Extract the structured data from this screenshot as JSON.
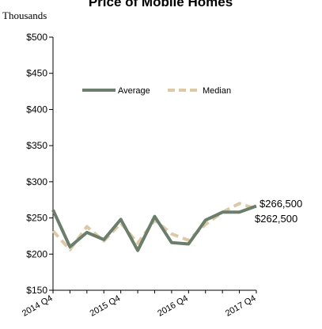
{
  "chart_data": {
    "type": "line",
    "title": "Price of Mobile Homes",
    "unit_label": "Thousands",
    "xlabel": "",
    "ylabel": "",
    "ylim": [
      150,
      500
    ],
    "yticks": [
      150,
      200,
      250,
      300,
      350,
      400,
      450,
      500
    ],
    "ytick_labels": [
      "$150",
      "$200",
      "$250",
      "$300",
      "$350",
      "$400",
      "$450",
      "$500"
    ],
    "x": [
      "2014 Q4",
      "2015 Q1",
      "2015 Q2",
      "2015 Q3",
      "2015 Q4",
      "2016 Q1",
      "2016 Q2",
      "2016 Q3",
      "2016 Q4",
      "2017 Q1",
      "2017 Q2",
      "2017 Q3",
      "2017 Q4"
    ],
    "xtick_labels": [
      "2014 Q4",
      "2015 Q4",
      "2016 Q4",
      "2017 Q4"
    ],
    "grid": false,
    "legend_position": "top-center",
    "series": [
      {
        "name": "Average",
        "color": "#6b7d6b",
        "style": "solid",
        "values": [
          261,
          210,
          230,
          220,
          248,
          205,
          252,
          216,
          214,
          247,
          258,
          258,
          266.5
        ]
      },
      {
        "name": "Median",
        "color": "#dcc9a5",
        "style": "dashed",
        "values": [
          232,
          206,
          238,
          218,
          243,
          215,
          247,
          228,
          219,
          241,
          258,
          270,
          262.5
        ]
      }
    ],
    "annotations": [
      "$266,500",
      "$262,500"
    ]
  }
}
